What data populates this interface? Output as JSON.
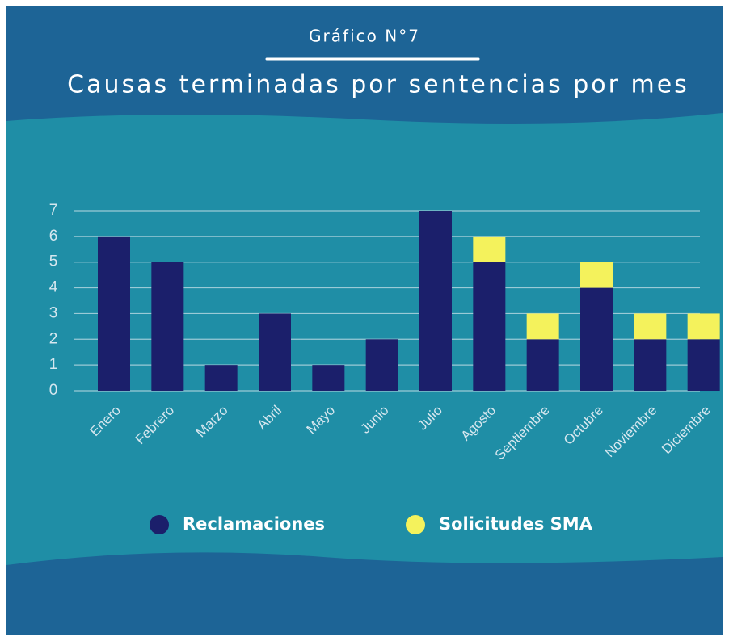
{
  "chart_data": {
    "type": "bar",
    "stacked": true,
    "subtitle": "Gráfico N°7",
    "title": "Causas terminadas por sentencias por mes",
    "categories": [
      "Enero",
      "Febrero",
      "Marzo",
      "Abril",
      "Mayo",
      "Junio",
      "Julio",
      "Agosto",
      "Septiembre",
      "Octubre",
      "Noviembre",
      "Diciembre"
    ],
    "series": [
      {
        "name": "Reclamaciones",
        "color": "#1b1f6b",
        "values": [
          6,
          5,
          1,
          3,
          1,
          2,
          7,
          5,
          2,
          4,
          2,
          2
        ]
      },
      {
        "name": "Solicitudes SMA",
        "color": "#f4f25c",
        "values": [
          0,
          0,
          0,
          0,
          0,
          0,
          0,
          1,
          1,
          1,
          1,
          1
        ]
      }
    ],
    "ylim": [
      0,
      7
    ],
    "yticks": [
      0,
      1,
      2,
      3,
      4,
      5,
      6,
      7
    ],
    "grid": true,
    "legend": "bottom"
  }
}
